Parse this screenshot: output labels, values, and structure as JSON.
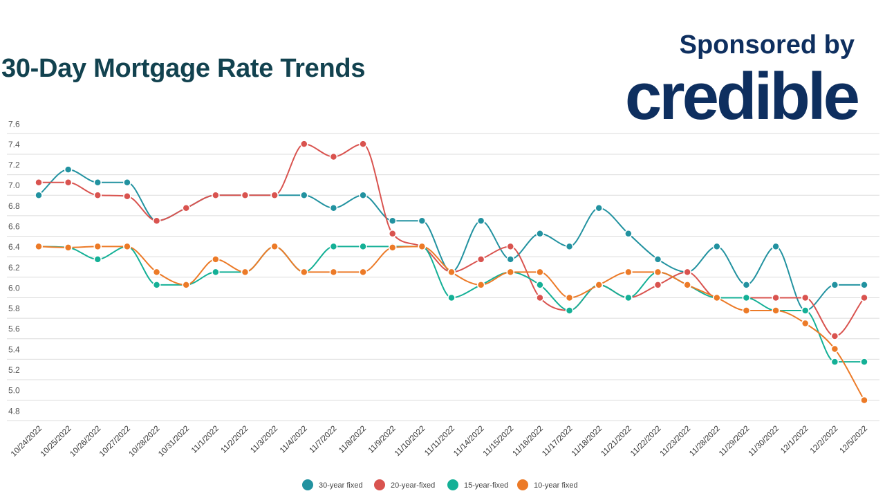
{
  "header": {
    "title": "30-Day Mortgage Rate Trends",
    "sponsor_text": "Sponsored by",
    "brand_logo": "credible"
  },
  "chart_data": {
    "type": "line",
    "title": "30-Day Mortgage Rate Trends",
    "xlabel": "",
    "ylabel": "",
    "ylim": [
      4.8,
      7.6
    ],
    "yticks": [
      "4.8",
      "5.0",
      "5.2",
      "5.4",
      "5.6",
      "5.8",
      "6.0",
      "6.2",
      "6.4",
      "6.6",
      "6.8",
      "7.0",
      "7.2",
      "7.4",
      "7.6"
    ],
    "grid": true,
    "legend_position": "bottom",
    "categories": [
      "10/24/2022",
      "10/25/2022",
      "10/26/2022",
      "10/27/2022",
      "10/28/2022",
      "10/31/2022",
      "11/1/2022",
      "11/2/2022",
      "11/3/2022",
      "11/4/2022",
      "11/7/2022",
      "11/8/2022",
      "11/9/2022",
      "11/10/2022",
      "11/11/2022",
      "11/14/2022",
      "11/15/2022",
      "11/16/2022",
      "11/17/2022",
      "11/18/2022",
      "11/21/2022",
      "11/22/2022",
      "11/23/2022",
      "11/28/2022",
      "11/29/2022",
      "11/30/2022",
      "12/1/2022",
      "12/2/2022",
      "12/5/2022"
    ],
    "series": [
      {
        "name": "30-year fixed",
        "color": "#2292a0",
        "values": [
          7.0,
          7.25,
          7.125,
          7.125,
          6.75,
          6.875,
          7.0,
          7.0,
          7.0,
          7.0,
          6.875,
          7.0,
          6.75,
          6.75,
          6.25,
          6.75,
          6.375,
          6.625,
          6.5,
          6.875,
          6.625,
          6.375,
          6.25,
          6.5,
          6.125,
          6.5,
          5.875,
          6.125,
          6.125
        ]
      },
      {
        "name": "20-year-fixed",
        "color": "#d9534f",
        "values": [
          7.125,
          7.125,
          7.0,
          6.99,
          6.75,
          6.875,
          7.0,
          7.0,
          7.0,
          7.5,
          7.375,
          7.5,
          6.625,
          6.5,
          6.25,
          6.375,
          6.5,
          6.0,
          5.875,
          6.125,
          6.0,
          6.125,
          6.25,
          6.0,
          6.0,
          6.0,
          6.0,
          5.625,
          6.0
        ]
      },
      {
        "name": "15-year-fixed",
        "color": "#14b096",
        "values": [
          6.5,
          6.49,
          6.375,
          6.5,
          6.125,
          6.125,
          6.25,
          6.25,
          6.5,
          6.25,
          6.5,
          6.5,
          6.5,
          6.5,
          6.0,
          6.125,
          6.25,
          6.125,
          5.875,
          6.125,
          6.0,
          6.25,
          6.125,
          6.0,
          6.0,
          5.875,
          5.875,
          5.375,
          5.375
        ]
      },
      {
        "name": "10-year fixed",
        "color": "#ec7a27",
        "values": [
          6.5,
          6.49,
          6.5,
          6.5,
          6.25,
          6.125,
          6.375,
          6.25,
          6.5,
          6.25,
          6.25,
          6.25,
          6.49,
          6.5,
          6.25,
          6.125,
          6.25,
          6.25,
          6.0,
          6.125,
          6.25,
          6.25,
          6.125,
          6.0,
          5.875,
          5.875,
          5.75,
          5.5,
          5.0
        ]
      }
    ]
  }
}
